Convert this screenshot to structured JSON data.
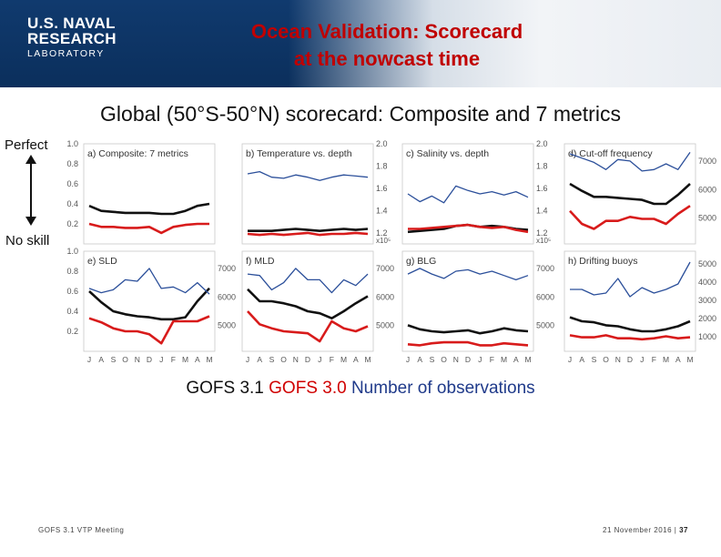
{
  "header": {
    "logo": {
      "line1": "U.S. NAVAL",
      "line2": "RESEARCH",
      "line3": "LABORATORY"
    },
    "title_line1": "Ocean Validation: Scorecard",
    "title_line2": "at the nowcast time"
  },
  "subtitle": "Global (50°S-50°N) scorecard: Composite and 7 metrics",
  "scale_labels": {
    "top": "Perfect",
    "bottom": "No skill"
  },
  "legend": {
    "gofs31": "GOFS 3.1",
    "gofs30": "GOFS 3.0",
    "nobs": "Number of observations"
  },
  "footer": {
    "left": "GOFS 3.1 VTP Meeting",
    "date": "21 November 2016 |",
    "page": "37"
  },
  "colors": {
    "gofs31": "#111111",
    "gofs30": "#d81b1b",
    "nobs": "#2b4f9a"
  },
  "chart_data": {
    "type": "line",
    "months": [
      "J",
      "A",
      "S",
      "O",
      "N",
      "D",
      "J",
      "F",
      "M",
      "A",
      "M"
    ],
    "skill_axis": {
      "ylim": [
        0,
        1.0
      ],
      "ticks": [
        "1.0",
        "0.8",
        "0.6",
        "0.4",
        "0.2"
      ]
    },
    "panels": [
      {
        "label": "a) Composite: 7 metrics",
        "right_ticks": [],
        "right_lim": null,
        "series": [
          {
            "name": "GOFS 3.1",
            "values": [
              0.38,
              0.33,
              0.32,
              0.31,
              0.31,
              0.31,
              0.3,
              0.3,
              0.33,
              0.38,
              0.4
            ]
          },
          {
            "name": "GOFS 3.0",
            "values": [
              0.2,
              0.17,
              0.17,
              0.16,
              0.16,
              0.17,
              0.11,
              0.17,
              0.19,
              0.2,
              0.2
            ]
          }
        ]
      },
      {
        "label": "b) Temperature vs. depth",
        "right_ticks": [
          "2.0",
          "1.8",
          "1.6",
          "1.4",
          "1.2"
        ],
        "right_lim": [
          1.1,
          2.0
        ],
        "right_note": "x10⁵",
        "series": [
          {
            "name": "GOFS 3.1",
            "values": [
              0.13,
              0.13,
              0.13,
              0.14,
              0.15,
              0.14,
              0.13,
              0.14,
              0.15,
              0.14,
              0.15
            ]
          },
          {
            "name": "GOFS 3.0",
            "values": [
              0.1,
              0.09,
              0.1,
              0.09,
              0.1,
              0.11,
              0.09,
              0.1,
              0.1,
              0.11,
              0.1
            ]
          },
          {
            "name": "Number of observations",
            "values": [
              1.73,
              1.75,
              1.7,
              1.69,
              1.72,
              1.7,
              1.67,
              1.7,
              1.72,
              1.71,
              1.7
            ]
          }
        ]
      },
      {
        "label": "c) Salinity vs. depth",
        "right_ticks": [
          "2.0",
          "1.8",
          "1.6",
          "1.4",
          "1.2"
        ],
        "right_lim": [
          1.1,
          2.0
        ],
        "right_note": "x10⁵",
        "series": [
          {
            "name": "GOFS 3.1",
            "values": [
              0.12,
              0.13,
              0.14,
              0.15,
              0.18,
              0.19,
              0.17,
              0.18,
              0.17,
              0.15,
              0.14
            ]
          },
          {
            "name": "GOFS 3.0",
            "values": [
              0.15,
              0.15,
              0.16,
              0.17,
              0.18,
              0.19,
              0.17,
              0.16,
              0.17,
              0.14,
              0.12
            ]
          },
          {
            "name": "Number of observations",
            "values": [
              1.55,
              1.48,
              1.53,
              1.47,
              1.62,
              1.58,
              1.55,
              1.57,
              1.54,
              1.57,
              1.52
            ]
          }
        ]
      },
      {
        "label": "d) Cut-off frequency",
        "right_ticks": [
          "7000",
          "6000",
          "5000"
        ],
        "right_lim": [
          4100,
          7600
        ],
        "series": [
          {
            "name": "GOFS 3.1",
            "values": [
              0.6,
              0.53,
              0.47,
              0.47,
              0.46,
              0.45,
              0.44,
              0.4,
              0.4,
              0.49,
              0.6
            ]
          },
          {
            "name": "GOFS 3.0",
            "values": [
              0.33,
              0.2,
              0.15,
              0.23,
              0.23,
              0.27,
              0.25,
              0.25,
              0.2,
              0.3,
              0.38
            ]
          },
          {
            "name": "Number of observations",
            "values": [
              7250,
              7100,
              6950,
              6700,
              7050,
              7000,
              6650,
              6700,
              6900,
              6700,
              7300
            ]
          }
        ]
      },
      {
        "label": "e) SLD",
        "right_ticks": [
          "7000",
          "6000",
          "5000"
        ],
        "right_lim": [
          4100,
          7600
        ],
        "series": [
          {
            "name": "GOFS 3.1",
            "values": [
              0.6,
              0.49,
              0.4,
              0.37,
              0.35,
              0.34,
              0.32,
              0.32,
              0.34,
              0.5,
              0.63
            ]
          },
          {
            "name": "GOFS 3.0",
            "values": [
              0.33,
              0.29,
              0.23,
              0.2,
              0.2,
              0.17,
              0.08,
              0.3,
              0.3,
              0.3,
              0.35
            ]
          },
          {
            "name": "Number of observations",
            "values": [
              6300,
              6150,
              6250,
              6600,
              6550,
              7000,
              6300,
              6350,
              6150,
              6500,
              6100
            ]
          }
        ]
      },
      {
        "label": "f) MLD",
        "right_ticks": [
          "7000",
          "6000",
          "5000"
        ],
        "right_lim": [
          4100,
          7600
        ],
        "series": [
          {
            "name": "GOFS 3.1",
            "values": [
              0.62,
              0.5,
              0.5,
              0.48,
              0.45,
              0.4,
              0.38,
              0.33,
              0.4,
              0.48,
              0.55
            ]
          },
          {
            "name": "GOFS 3.0",
            "values": [
              0.4,
              0.27,
              0.23,
              0.2,
              0.19,
              0.18,
              0.1,
              0.3,
              0.23,
              0.2,
              0.25
            ]
          },
          {
            "name": "Number of observations",
            "values": [
              6800,
              6750,
              6250,
              6500,
              7000,
              6600,
              6600,
              6150,
              6600,
              6400,
              6800
            ]
          }
        ]
      },
      {
        "label": "g) BLG",
        "right_ticks": [
          "7000",
          "6000",
          "5000"
        ],
        "right_lim": [
          4100,
          7600
        ],
        "series": [
          {
            "name": "GOFS 3.1",
            "values": [
              0.26,
              0.22,
              0.2,
              0.19,
              0.2,
              0.21,
              0.18,
              0.2,
              0.23,
              0.21,
              0.2
            ]
          },
          {
            "name": "GOFS 3.0",
            "values": [
              0.07,
              0.06,
              0.08,
              0.09,
              0.09,
              0.09,
              0.06,
              0.06,
              0.08,
              0.07,
              0.06
            ]
          },
          {
            "name": "Number of observations",
            "values": [
              6800,
              7000,
              6800,
              6650,
              6900,
              6950,
              6800,
              6900,
              6750,
              6600,
              6750
            ]
          }
        ]
      },
      {
        "label": "h) Drifting buoys",
        "right_ticks": [
          "5000",
          "4000",
          "3000",
          "2000",
          "1000"
        ],
        "right_lim": [
          200,
          5700
        ],
        "series": [
          {
            "name": "GOFS 3.1",
            "values": [
              0.34,
              0.3,
              0.29,
              0.26,
              0.25,
              0.22,
              0.2,
              0.2,
              0.22,
              0.25,
              0.3
            ]
          },
          {
            "name": "GOFS 3.0",
            "values": [
              0.16,
              0.14,
              0.14,
              0.16,
              0.13,
              0.13,
              0.12,
              0.13,
              0.15,
              0.13,
              0.14
            ]
          },
          {
            "name": "Number of observations",
            "values": [
              3600,
              3600,
              3300,
              3400,
              4200,
              3200,
              3700,
              3400,
              3600,
              3900,
              5100
            ]
          }
        ]
      }
    ]
  }
}
